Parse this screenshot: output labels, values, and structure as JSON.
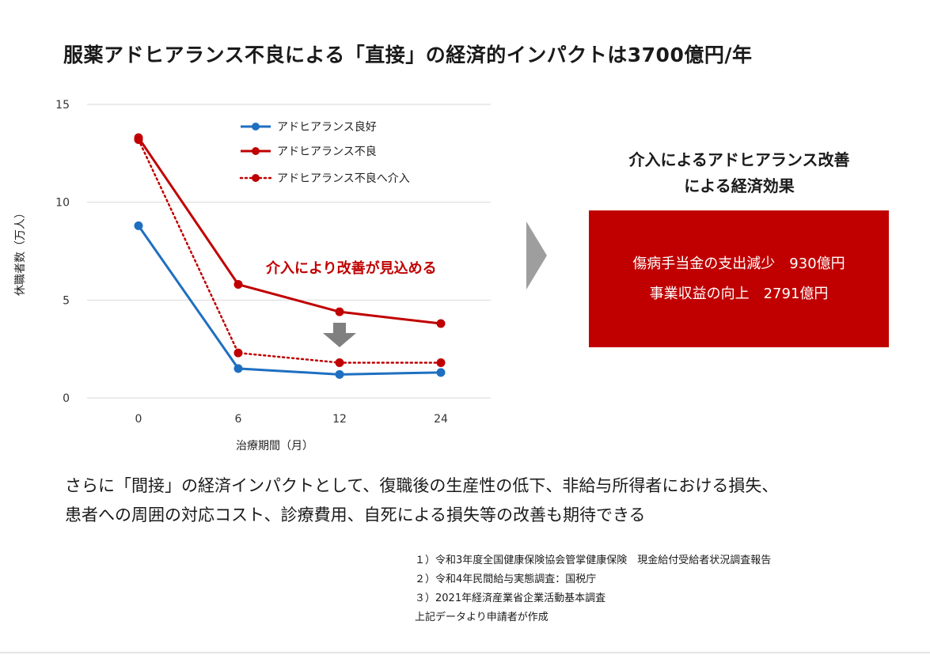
{
  "title": "服薬アドヒアランス不良による「直接」の経済的インパクトは3700億円/年",
  "chart_data": {
    "type": "line",
    "x": [
      "0",
      "6",
      "12",
      "24"
    ],
    "xlabel": "治療期間（月）",
    "ylabel": "休職者数（万人）",
    "ylim": [
      0,
      15
    ],
    "yticks": [
      0,
      5,
      10,
      15
    ],
    "series": [
      {
        "name": "アドヒアランス良好",
        "values": [
          8.8,
          1.5,
          1.2,
          1.3
        ],
        "color": "#1f6fc1",
        "style": "solid"
      },
      {
        "name": "アドヒアランス不良",
        "values": [
          13.3,
          5.8,
          4.4,
          3.8
        ],
        "color": "#c00000",
        "style": "solid"
      },
      {
        "name": "アドヒアランス不良へ介入",
        "values": [
          13.2,
          2.3,
          1.8,
          1.8
        ],
        "color": "#c00000",
        "style": "dotted"
      }
    ],
    "annotation": "介入により改善が見込める",
    "legend_position": "top-right"
  },
  "effect": {
    "heading_line1": "介入によるアドヒアランス改善",
    "heading_line2": "による経済効果",
    "line1": "傷病手当金の支出減少　930億円",
    "line2": "事業収益の向上　2791億円",
    "box_color": "#c00000"
  },
  "body": {
    "line1": "さらに「間接」の経済インパクトとして、復職後の生産性の低下、非給与所得者における損失、",
    "line2": "患者への周囲の対応コスト、診療費用、自死による損失等の改善も期待できる"
  },
  "footnotes": [
    "１）令和3年度全国健康保険協会管掌健康保険　現金給付受給者状況調査報告",
    "２）令和4年民間給与実態調査：国税庁",
    "３）2021年経済産業省企業活動基本調査",
    "上記データより申請者が作成"
  ]
}
